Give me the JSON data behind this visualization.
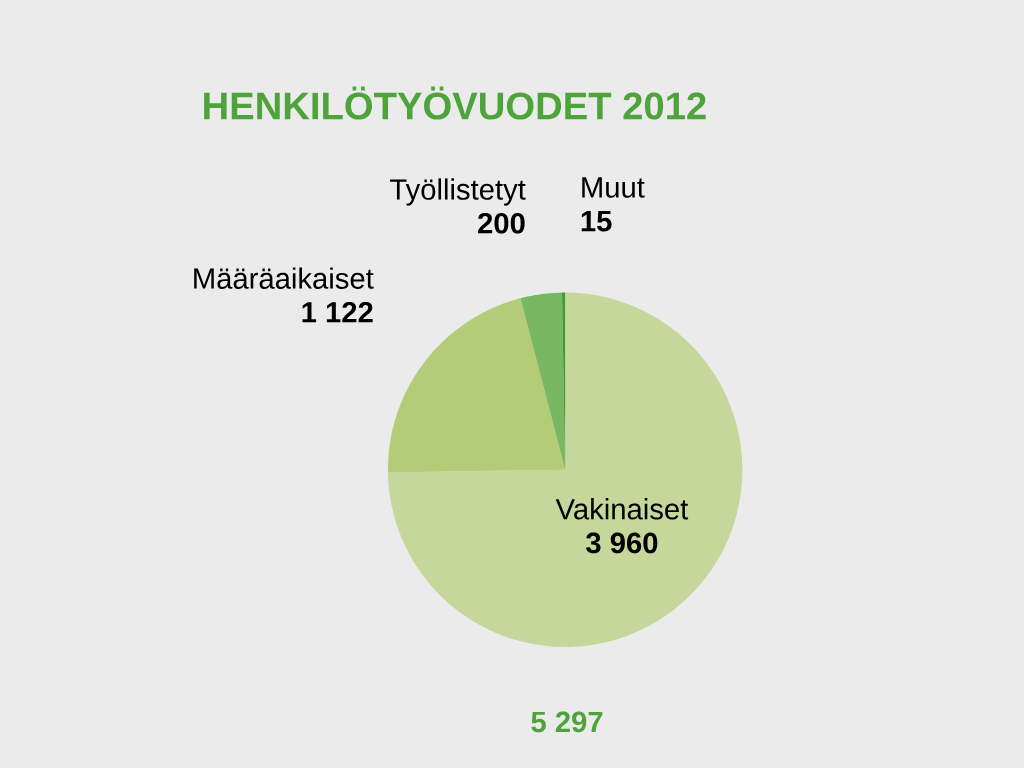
{
  "chart_data": {
    "type": "pie",
    "title": "HENKILÖTYÖVUODET 2012",
    "categories": [
      "Vakinaiset",
      "Määräaikaiset",
      "Työllistetyt",
      "Muut"
    ],
    "values": [
      3960,
      1122,
      200,
      15
    ],
    "value_labels": [
      "3 960",
      "1 122",
      "200",
      "15"
    ],
    "colors": [
      "#c6d79c",
      "#b4cc78",
      "#78b862",
      "#3e9c34"
    ],
    "annotations": [
      "5 297"
    ]
  }
}
